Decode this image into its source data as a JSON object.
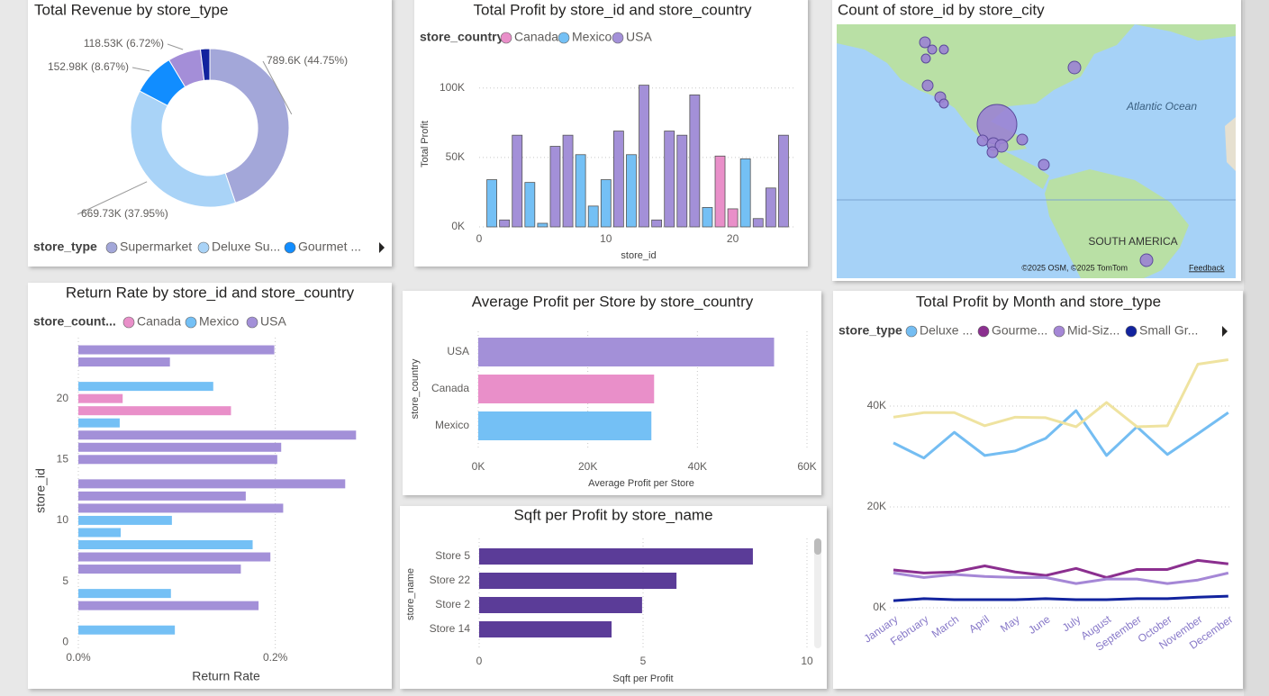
{
  "chart_data": [
    {
      "type": "pie",
      "donut": true,
      "title": "Total Revenue by store_type",
      "legend_title": "store_type",
      "categories": [
        "Supermarket",
        "Deluxe Su...",
        "Gourmet ...",
        null,
        null
      ],
      "values": [
        789600,
        669730,
        152980,
        118530,
        33600
      ],
      "value_labels": [
        "789.6K (44.75%)",
        "669.73K (37.95%)",
        "152.98K (8.67%)",
        "118.53K (6.72%)",
        null
      ],
      "colors": [
        "#a3a7d9",
        "#a9d3f7",
        "#118dff",
        "#a48ed8",
        "#12239e"
      ]
    },
    {
      "type": "bar",
      "orientation": "vertical",
      "title": "Total Profit by store_id and store_country",
      "legend_title": "store_country",
      "xlabel": "store_id",
      "ylabel": "Total Profit",
      "x": [
        1,
        2,
        3,
        4,
        5,
        6,
        7,
        8,
        9,
        10,
        11,
        12,
        13,
        14,
        15,
        16,
        17,
        18,
        19,
        20,
        21,
        22,
        23,
        24
      ],
      "series": [
        {
          "name": "Canada",
          "color": "#e98fc9",
          "values": [
            null,
            null,
            null,
            null,
            null,
            null,
            null,
            null,
            null,
            null,
            null,
            null,
            null,
            null,
            null,
            null,
            null,
            null,
            51000,
            13000,
            null,
            null,
            null,
            null
          ]
        },
        {
          "name": "Mexico",
          "color": "#74c0f5",
          "values": [
            34000,
            null,
            null,
            32000,
            2600,
            null,
            null,
            52000,
            15000,
            34000,
            null,
            52000,
            null,
            null,
            null,
            null,
            null,
            14000,
            null,
            null,
            49000,
            null,
            null,
            null
          ]
        },
        {
          "name": "USA",
          "color": "#a390d8",
          "values": [
            null,
            5000,
            66000,
            null,
            null,
            58000,
            66000,
            null,
            null,
            null,
            69000,
            null,
            102000,
            5000,
            69000,
            66000,
            95000,
            null,
            null,
            null,
            null,
            6000,
            28000,
            66000
          ]
        }
      ],
      "xlim": [
        0,
        25
      ],
      "xticks": [
        0,
        10,
        20
      ],
      "ylim": [
        0,
        105000
      ],
      "yticks": [
        {
          "value": 0,
          "label": "0K"
        },
        {
          "value": 50000,
          "label": "50K"
        },
        {
          "value": 100000,
          "label": "100K"
        }
      ],
      "grid": true
    },
    {
      "type": "bar",
      "orientation": "horizontal",
      "title": "Return Rate by store_id and store_country",
      "legend_title": "store_count...",
      "xlabel": "Return Rate",
      "ylabel": "store_id",
      "y": [
        1,
        2,
        3,
        4,
        5,
        6,
        7,
        8,
        9,
        10,
        11,
        12,
        13,
        14,
        15,
        16,
        17,
        18,
        19,
        20,
        21,
        22,
        23,
        24
      ],
      "series": [
        {
          "name": "Canada",
          "color": "#e98fc9",
          "values": [
            null,
            null,
            null,
            null,
            null,
            null,
            null,
            null,
            null,
            null,
            null,
            null,
            null,
            null,
            null,
            null,
            null,
            null,
            0.155,
            0.045,
            null,
            null,
            null,
            null
          ]
        },
        {
          "name": "Mexico",
          "color": "#74c0f5",
          "values": [
            0.098,
            null,
            null,
            0.094,
            null,
            null,
            null,
            0.177,
            0.043,
            0.095,
            null,
            null,
            null,
            null,
            null,
            null,
            null,
            0.042,
            null,
            null,
            0.137,
            null,
            null,
            null
          ]
        },
        {
          "name": "USA",
          "color": "#a390d8",
          "values": [
            null,
            null,
            0.183,
            null,
            null,
            0.165,
            0.195,
            null,
            null,
            null,
            0.208,
            0.17,
            0.271,
            null,
            0.202,
            0.206,
            0.282,
            null,
            null,
            null,
            null,
            null,
            0.093,
            0.199
          ]
        }
      ],
      "xlim": [
        0,
        0.3
      ],
      "xticks": [
        {
          "value": 0,
          "label": "0.0%"
        },
        {
          "value": 0.2,
          "label": "0.2%"
        }
      ],
      "ylim": [
        -0.5,
        25
      ],
      "yticks": [
        0,
        5,
        10,
        15,
        20
      ],
      "grid": true
    },
    {
      "type": "bar",
      "orientation": "horizontal",
      "title": "Average Profit per Store by store_country",
      "xlabel": "Average Profit per Store",
      "ylabel": "store_country",
      "categories": [
        "USA",
        "Canada",
        "Mexico"
      ],
      "values": [
        54000,
        32100,
        31600
      ],
      "colors": [
        "#a390d8",
        "#e98fc9",
        "#74c0f5"
      ],
      "xlim": [
        0,
        60000
      ],
      "xticks": [
        {
          "value": 0,
          "label": "0K"
        },
        {
          "value": 20000,
          "label": "20K"
        },
        {
          "value": 40000,
          "label": "40K"
        },
        {
          "value": 60000,
          "label": "60K"
        }
      ],
      "grid": true
    },
    {
      "type": "bar",
      "orientation": "horizontal",
      "title": "Sqft per Profit by store_name",
      "xlabel": "Sqft per Profit",
      "ylabel": "store_name",
      "categories": [
        "Store 5",
        "Store 22",
        "Store 2",
        "Store 14"
      ],
      "values": [
        8.35,
        6.02,
        4.97,
        4.04
      ],
      "color": "#5b3c98",
      "xlim": [
        0,
        10
      ],
      "xticks": [
        0,
        5,
        10
      ],
      "grid": true
    },
    {
      "type": "line",
      "title": "Total Profit by Month and store_type",
      "legend_title": "store_type",
      "xlabel": "Month",
      "ylabel": "Total Profit",
      "categories": [
        "January",
        "February",
        "March",
        "April",
        "May",
        "June",
        "July",
        "August",
        "September",
        "October",
        "November",
        "December"
      ],
      "series": [
        {
          "name": "Deluxe ...",
          "color": "#74bdf2",
          "values": [
            32700,
            29700,
            34800,
            30200,
            31100,
            33600,
            39100,
            30200,
            35900,
            30400,
            34500,
            38700
          ]
        },
        {
          "name": "Gourme...",
          "color": "#8b2f8f",
          "values": [
            7500,
            6900,
            7100,
            8300,
            7100,
            6400,
            7800,
            6000,
            7600,
            7600,
            9400,
            8700
          ]
        },
        {
          "name": "Mid-Siz...",
          "color": "#a587d6",
          "values": [
            6900,
            6000,
            6600,
            6200,
            6000,
            6000,
            4800,
            5700,
            5700,
            4800,
            5500,
            6900
          ]
        },
        {
          "name": "Small Gr...",
          "color": "#12239e",
          "values": [
            1400,
            1800,
            1600,
            1600,
            1600,
            1800,
            1600,
            1600,
            1800,
            1800,
            2100,
            2300
          ]
        },
        {
          "name": null,
          "color": "#efe3a0",
          "values": [
            37800,
            38700,
            38700,
            36100,
            37800,
            37700,
            35900,
            40700,
            35900,
            36100,
            48300,
            49200
          ]
        }
      ],
      "ylim": [
        0,
        50000
      ],
      "yticks": [
        {
          "value": 0,
          "label": "0K"
        },
        {
          "value": 20000,
          "label": "20K"
        },
        {
          "value": 40000,
          "label": "40K"
        }
      ],
      "grid": true
    }
  ],
  "map": {
    "title": "Count of store_id by store_city",
    "labels": [
      "Atlantic Ocean",
      "SOUTH AMERICA"
    ],
    "attribution": "©2025 OSM, ©2025 TomTom",
    "feedback": "Feedback"
  }
}
